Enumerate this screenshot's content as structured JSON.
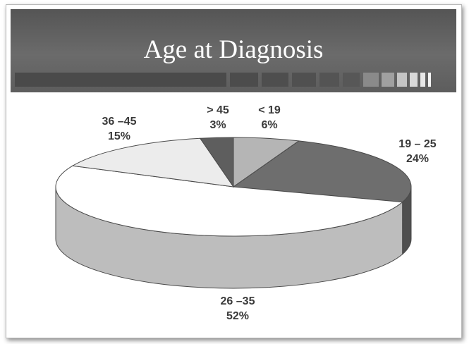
{
  "slide": {
    "title": "Age at Diagnosis"
  },
  "colors": {
    "band": "#5f5f5f",
    "slice_lt19": "#b5b5b5",
    "slice_19_25": "#6e6e6e",
    "slice_26_35": "#ffffff",
    "slice_36_45": "#ececec",
    "slice_gt45": "#5e5e5e",
    "outline": "#4a4a4a"
  },
  "chart_data": {
    "type": "pie",
    "title": "Age at Diagnosis",
    "categories": [
      "< 19",
      "19 – 25",
      "26 –35",
      "36 –45",
      "> 45"
    ],
    "values": [
      6,
      24,
      52,
      15,
      3
    ],
    "value_labels": [
      "6%",
      "24%",
      "52%",
      "15%",
      "3%"
    ],
    "style": "3d"
  }
}
